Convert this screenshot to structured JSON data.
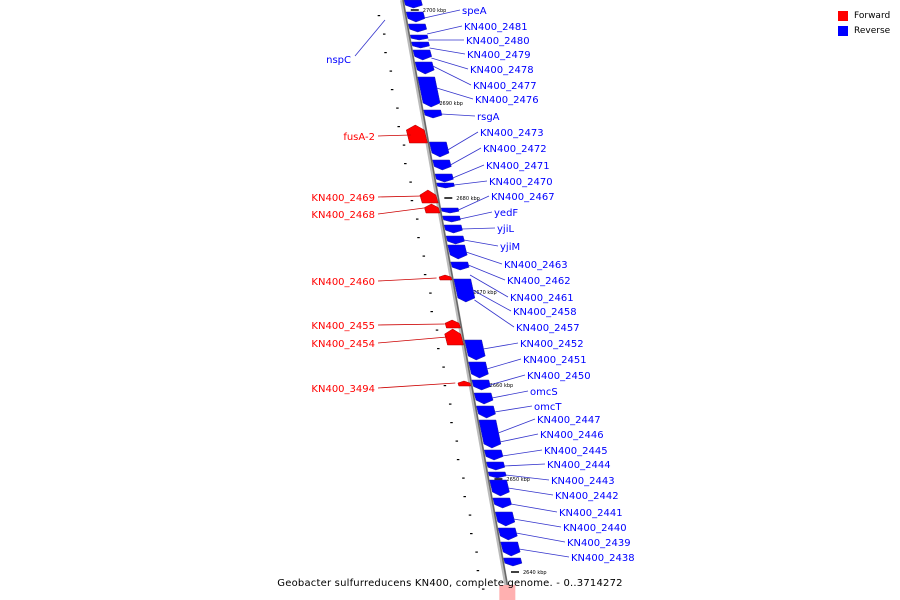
{
  "title": "Geobacter sulfurreducens KN400, complete genome. - 0..3714272",
  "legend": [
    {
      "label": "Forward",
      "color": "#ff0000"
    },
    {
      "label": "Reverse",
      "color": "#0000ff"
    }
  ],
  "colors": {
    "forward": "#ff0000",
    "reverse": "#0000ff",
    "backbone": "#999999",
    "leader": "#3333cc",
    "leader_fwd": "#cc0000"
  },
  "ticks": [
    "2700 kbp",
    "2690 kbp",
    "2680 kbp",
    "2670 kbp",
    "2660 kbp",
    "2650 kbp",
    "2640 kbp"
  ],
  "reverse_genes": [
    "speA",
    "KN400_2481",
    "KN400_2480",
    "KN400_2479",
    "KN400_2478",
    "KN400_2477",
    "KN400_2476",
    "rsgA",
    "KN400_2473",
    "KN400_2472",
    "KN400_2471",
    "KN400_2470",
    "KN400_2467",
    "yedF",
    "yjiL",
    "yjiM",
    "KN400_2463",
    "KN400_2462",
    "KN400_2461",
    "KN400_2458",
    "KN400_2457",
    "KN400_2452",
    "KN400_2451",
    "KN400_2450",
    "omcS",
    "omcT",
    "KN400_2447",
    "KN400_2446",
    "KN400_2445",
    "KN400_2444",
    "KN400_2443",
    "KN400_2442",
    "KN400_2441",
    "KN400_2440",
    "KN400_2439",
    "KN400_2438"
  ],
  "forward_genes": [
    "fusA-2",
    "KN400_2469",
    "KN400_2468",
    "KN400_2460",
    "KN400_2455",
    "KN400_2454",
    "KN400_3494"
  ],
  "left_reverse_genes": [
    "nspC"
  ]
}
